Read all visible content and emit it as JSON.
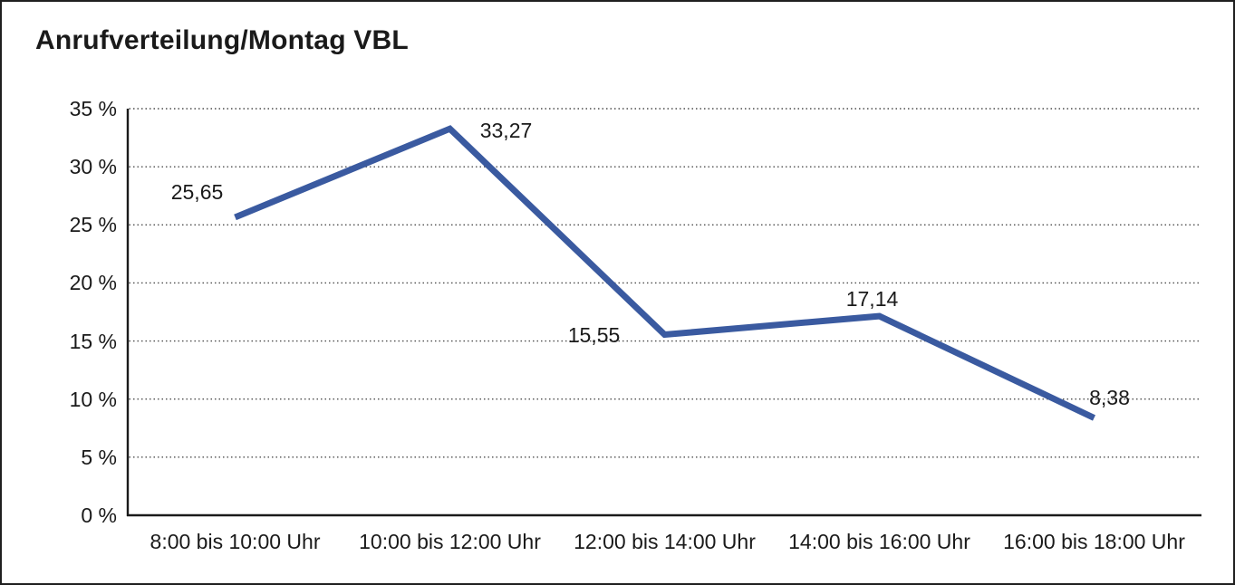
{
  "colors": {
    "line": "#3A5AA0",
    "axis": "#1A1A1A",
    "grid": "#4D4D4D",
    "text": "#1A1A1A",
    "border": "#1F1F1F",
    "background": "#FFFFFF"
  },
  "chart_data": {
    "type": "line",
    "title": "Anrufverteilung/Montag VBL",
    "categories": [
      "8:00 bis 10:00 Uhr",
      "10:00 bis 12:00 Uhr",
      "12:00 bis 14:00 Uhr",
      "14:00 bis 16:00 Uhr",
      "16:00 bis 18:00 Uhr"
    ],
    "values": [
      25.65,
      33.27,
      15.55,
      17.14,
      8.38
    ],
    "data_labels": [
      "25,65",
      "33,27",
      "15,55",
      "17,14",
      "8,38"
    ],
    "xlabel": "",
    "ylabel": "",
    "ylim": [
      0,
      35
    ],
    "ytick_step": 5,
    "ytick_labels": [
      "0 %",
      "5 %",
      "10 %",
      "15 %",
      "20 %",
      "25 %",
      "30 %",
      "35 %"
    ],
    "grid": "horizontal-dotted",
    "legend": "none"
  }
}
